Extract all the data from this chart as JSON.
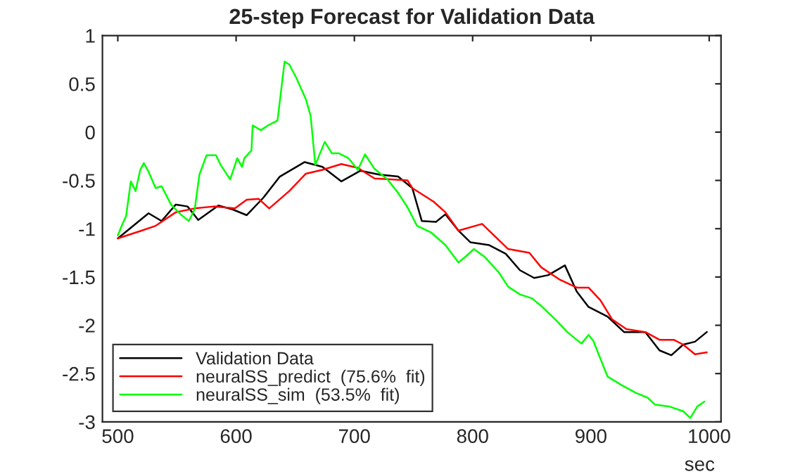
{
  "chart_data": {
    "type": "line",
    "title": "25-step Forecast for Validation Data",
    "xlabel": "sec",
    "xlim": [
      487,
      1010
    ],
    "ylim": [
      -3,
      1
    ],
    "xticks": [
      500,
      600,
      700,
      800,
      900,
      1000
    ],
    "yticks": [
      -3,
      -2.5,
      -2,
      -1.5,
      -1,
      -0.5,
      0,
      0.5,
      1
    ],
    "grid": false,
    "legend": "bottom left",
    "series": [
      {
        "name": "Validation Data",
        "color": "#000000",
        "x": [
          500,
          508,
          526,
          537,
          549,
          559,
          568,
          585,
          597,
          609,
          623,
          637,
          658,
          673,
          689,
          705,
          721,
          737,
          749,
          757,
          769,
          777,
          788,
          798,
          814,
          828,
          840,
          852,
          864,
          878,
          888,
          898,
          914,
          928,
          946,
          958,
          968,
          978,
          988,
          998
        ],
        "values": [
          -1.1,
          -1.02,
          -0.84,
          -0.92,
          -0.75,
          -0.77,
          -0.91,
          -0.76,
          -0.8,
          -0.86,
          -0.68,
          -0.46,
          -0.31,
          -0.36,
          -0.51,
          -0.4,
          -0.44,
          -0.46,
          -0.58,
          -0.92,
          -0.93,
          -0.85,
          -1.02,
          -1.14,
          -1.17,
          -1.26,
          -1.43,
          -1.51,
          -1.48,
          -1.38,
          -1.65,
          -1.81,
          -1.91,
          -2.07,
          -2.07,
          -2.26,
          -2.31,
          -2.2,
          -2.17,
          -2.07
        ]
      },
      {
        "name": "neuralSS_predict  (75.6%  fit)",
        "color": "#ff0000",
        "x": [
          500,
          520,
          532,
          549,
          565,
          581,
          599,
          609,
          619,
          628,
          645,
          659,
          673,
          689,
          703,
          717,
          733,
          745,
          749,
          767,
          777,
          788,
          808,
          830,
          848,
          858,
          874,
          888,
          898,
          908,
          918,
          930,
          946,
          958,
          970,
          978,
          988,
          998
        ],
        "values": [
          -1.1,
          -1.02,
          -0.97,
          -0.83,
          -0.79,
          -0.77,
          -0.79,
          -0.7,
          -0.69,
          -0.79,
          -0.61,
          -0.43,
          -0.39,
          -0.33,
          -0.37,
          -0.48,
          -0.49,
          -0.5,
          -0.58,
          -0.72,
          -0.83,
          -1.02,
          -0.95,
          -1.21,
          -1.25,
          -1.4,
          -1.53,
          -1.61,
          -1.61,
          -1.74,
          -1.94,
          -2.04,
          -2.07,
          -2.15,
          -2.15,
          -2.2,
          -2.3,
          -2.28
        ]
      },
      {
        "name": "neuralSS_sim  (53.5%  fit)",
        "color": "#00ff00",
        "x": [
          500,
          504,
          507,
          511,
          515,
          519,
          522,
          526,
          532,
          537,
          545,
          553,
          560,
          565,
          569,
          575,
          583,
          587,
          595,
          601,
          605,
          607,
          613,
          614,
          621,
          627,
          635,
          637,
          641,
          645,
          651,
          659,
          663,
          667,
          675,
          681,
          687,
          695,
          703,
          709,
          717,
          728,
          737,
          745,
          753,
          765,
          777,
          788,
          794,
          801,
          810,
          822,
          830,
          840,
          850,
          858,
          870,
          880,
          892,
          898,
          902,
          914,
          926,
          938,
          948,
          954,
          966,
          978,
          984,
          990,
          996
        ],
        "values": [
          -1.07,
          -0.95,
          -0.87,
          -0.51,
          -0.61,
          -0.39,
          -0.32,
          -0.41,
          -0.58,
          -0.56,
          -0.75,
          -0.85,
          -0.92,
          -0.8,
          -0.44,
          -0.24,
          -0.24,
          -0.34,
          -0.49,
          -0.27,
          -0.36,
          -0.27,
          -0.19,
          0.07,
          0.02,
          0.07,
          0.12,
          0.32,
          0.73,
          0.7,
          0.56,
          0.34,
          0.17,
          -0.34,
          -0.1,
          -0.22,
          -0.22,
          -0.27,
          -0.39,
          -0.23,
          -0.38,
          -0.49,
          -0.63,
          -0.78,
          -0.97,
          -1.04,
          -1.17,
          -1.35,
          -1.29,
          -1.21,
          -1.29,
          -1.45,
          -1.6,
          -1.68,
          -1.72,
          -1.8,
          -1.94,
          -2.07,
          -2.19,
          -2.1,
          -2.16,
          -2.53,
          -2.62,
          -2.7,
          -2.75,
          -2.82,
          -2.84,
          -2.89,
          -2.96,
          -2.84,
          -2.79
        ]
      }
    ]
  }
}
